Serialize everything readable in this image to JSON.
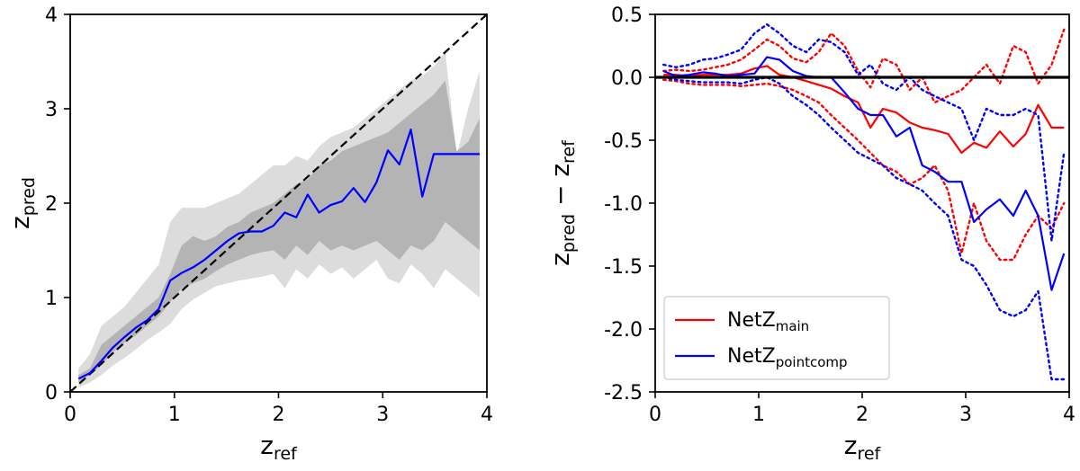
{
  "chart_data": [
    {
      "type": "line",
      "xlabel_main": "z",
      "xlabel_sub": "ref",
      "ylabel_main": "z",
      "ylabel_sub": "pred",
      "xlim": [
        0,
        4
      ],
      "ylim": [
        0,
        4
      ],
      "xticks": [
        "0",
        "1",
        "2",
        "3",
        "4"
      ],
      "yticks": [
        "0",
        "1",
        "2",
        "3",
        "4"
      ],
      "reference_line": {
        "name": "one-to-one",
        "style": "dashed",
        "color": "#000000",
        "points": [
          [
            0,
            0
          ],
          [
            4,
            4
          ]
        ]
      },
      "bands": [
        {
          "name": "outer-band",
          "color": "#dcdcdc",
          "x": [
            0.08,
            0.19,
            0.3,
            0.41,
            0.52,
            0.63,
            0.74,
            0.85,
            0.96,
            1.07,
            1.18,
            1.29,
            1.4,
            1.51,
            1.62,
            1.73,
            1.84,
            1.95,
            2.06,
            2.17,
            2.28,
            2.39,
            2.5,
            2.61,
            2.72,
            2.83,
            2.94,
            3.05,
            3.16,
            3.27,
            3.38,
            3.49,
            3.6,
            3.71,
            3.82,
            3.93
          ],
          "lower": [
            0.05,
            0.1,
            0.18,
            0.28,
            0.36,
            0.45,
            0.55,
            0.63,
            0.72,
            0.88,
            0.98,
            1.05,
            1.12,
            1.15,
            1.18,
            1.2,
            1.22,
            1.25,
            1.1,
            1.3,
            1.2,
            1.35,
            1.25,
            1.32,
            1.2,
            1.3,
            1.4,
            1.2,
            1.15,
            1.35,
            1.25,
            1.1,
            1.3,
            1.2,
            1.1,
            1.0
          ],
          "upper": [
            0.25,
            0.4,
            0.7,
            0.8,
            0.9,
            1.05,
            1.2,
            1.35,
            1.8,
            1.95,
            1.95,
            1.95,
            2.0,
            2.05,
            2.1,
            2.2,
            2.3,
            2.4,
            2.4,
            2.5,
            2.45,
            2.6,
            2.7,
            2.75,
            2.8,
            2.9,
            3.0,
            3.1,
            3.2,
            3.3,
            3.35,
            3.45,
            3.6,
            2.5,
            3.0,
            3.4
          ]
        },
        {
          "name": "inner-band",
          "color": "#b4b4b4",
          "x": [
            0.08,
            0.19,
            0.3,
            0.41,
            0.52,
            0.63,
            0.74,
            0.85,
            0.96,
            1.07,
            1.18,
            1.29,
            1.4,
            1.51,
            1.62,
            1.73,
            1.84,
            1.95,
            2.06,
            2.17,
            2.28,
            2.39,
            2.5,
            2.61,
            2.72,
            2.83,
            2.94,
            3.05,
            3.16,
            3.27,
            3.38,
            3.49,
            3.6,
            3.71,
            3.82,
            3.93
          ],
          "lower": [
            0.1,
            0.18,
            0.28,
            0.42,
            0.52,
            0.6,
            0.7,
            0.8,
            0.95,
            1.1,
            1.15,
            1.2,
            1.28,
            1.35,
            1.4,
            1.45,
            1.48,
            1.5,
            1.4,
            1.55,
            1.45,
            1.6,
            1.5,
            1.55,
            1.5,
            1.55,
            1.6,
            1.5,
            1.4,
            1.55,
            1.5,
            1.6,
            1.8,
            1.7,
            1.6,
            1.5
          ],
          "upper": [
            0.18,
            0.25,
            0.5,
            0.6,
            0.7,
            0.8,
            0.9,
            1.0,
            1.25,
            1.55,
            1.65,
            1.6,
            1.65,
            1.75,
            1.8,
            1.9,
            1.95,
            2.0,
            2.1,
            2.2,
            2.25,
            2.4,
            2.45,
            2.55,
            2.6,
            2.65,
            2.7,
            2.75,
            2.85,
            2.95,
            3.05,
            3.15,
            3.3,
            2.55,
            2.65,
            2.9
          ]
        }
      ],
      "series": [
        {
          "name": "median",
          "color": "#0000ff",
          "x": [
            0.08,
            0.19,
            0.3,
            0.41,
            0.52,
            0.63,
            0.74,
            0.85,
            0.96,
            1.07,
            1.18,
            1.29,
            1.4,
            1.51,
            1.62,
            1.73,
            1.84,
            1.95,
            2.06,
            2.17,
            2.28,
            2.39,
            2.5,
            2.61,
            2.72,
            2.83,
            2.94,
            3.05,
            3.16,
            3.27,
            3.38,
            3.49,
            3.6,
            3.71,
            3.82,
            3.93
          ],
          "y": [
            0.14,
            0.2,
            0.33,
            0.47,
            0.58,
            0.68,
            0.76,
            0.88,
            1.18,
            1.26,
            1.32,
            1.4,
            1.5,
            1.6,
            1.68,
            1.7,
            1.7,
            1.76,
            1.9,
            1.85,
            2.09,
            1.9,
            1.98,
            2.02,
            2.16,
            2.01,
            2.22,
            2.56,
            2.41,
            2.78,
            2.07,
            2.52,
            2.52,
            2.52,
            2.52,
            2.52
          ]
        }
      ]
    },
    {
      "type": "line",
      "xlabel_main": "z",
      "xlabel_sub": "ref",
      "ylabel_parts": [
        "z",
        "pred",
        " − z",
        "ref"
      ],
      "xlim": [
        0,
        4
      ],
      "ylim": [
        -2.5,
        0.5
      ],
      "xticks": [
        "0",
        "1",
        "2",
        "3",
        "4"
      ],
      "yticks": [
        "0.5",
        "0.0",
        "-0.5",
        "-1.0",
        "-1.5",
        "-2.0",
        "-2.5"
      ],
      "ytick_values": [
        0.5,
        0.0,
        -0.5,
        -1.0,
        -1.5,
        -2.0,
        -2.5
      ],
      "zero_line": {
        "y": 0,
        "color": "#000000"
      },
      "legend": {
        "position": "lower-left",
        "entries": [
          {
            "main": "NetZ",
            "sub": "main",
            "color": "#ff0000"
          },
          {
            "main": "NetZ",
            "sub": "pointcomp",
            "color": "#0000ff"
          }
        ]
      },
      "series": [
        {
          "name": "NetZ main",
          "color": "#ff0000",
          "style": "solid",
          "x": [
            0.08,
            0.2,
            0.33,
            0.46,
            0.58,
            0.7,
            0.83,
            0.96,
            1.08,
            1.2,
            1.33,
            1.46,
            1.58,
            1.7,
            1.83,
            1.96,
            2.08,
            2.2,
            2.33,
            2.46,
            2.58,
            2.7,
            2.83,
            2.96,
            3.08,
            3.2,
            3.33,
            3.46,
            3.58,
            3.7,
            3.83,
            3.95
          ],
          "y": [
            0.02,
            0.02,
            0.01,
            0.02,
            0.02,
            0.02,
            0.03,
            0.07,
            0.09,
            0.02,
            0.0,
            -0.03,
            -0.06,
            -0.09,
            -0.15,
            -0.2,
            -0.4,
            -0.25,
            -0.28,
            -0.36,
            -0.4,
            -0.42,
            -0.45,
            -0.6,
            -0.52,
            -0.56,
            -0.43,
            -0.55,
            -0.45,
            -0.22,
            -0.4,
            -0.4
          ]
        },
        {
          "name": "NetZ main upper",
          "color": "#ff0000",
          "style": "dotted",
          "x": [
            0.08,
            0.2,
            0.33,
            0.46,
            0.58,
            0.7,
            0.83,
            0.96,
            1.08,
            1.2,
            1.33,
            1.46,
            1.58,
            1.7,
            1.83,
            1.96,
            2.08,
            2.2,
            2.33,
            2.46,
            2.58,
            2.7,
            2.83,
            2.96,
            3.08,
            3.2,
            3.33,
            3.46,
            3.58,
            3.7,
            3.83,
            3.95
          ],
          "y": [
            0.05,
            0.06,
            0.05,
            0.06,
            0.08,
            0.1,
            0.14,
            0.22,
            0.3,
            0.25,
            0.15,
            0.12,
            0.2,
            0.35,
            0.25,
            0.05,
            -0.08,
            0.15,
            0.1,
            -0.1,
            0.0,
            -0.2,
            -0.15,
            -0.1,
            0.0,
            0.1,
            -0.05,
            0.25,
            0.2,
            -0.05,
            0.1,
            0.38
          ]
        },
        {
          "name": "NetZ main lower",
          "color": "#ff0000",
          "style": "dotted",
          "x": [
            0.08,
            0.2,
            0.33,
            0.46,
            0.58,
            0.7,
            0.83,
            0.96,
            1.08,
            1.2,
            1.33,
            1.46,
            1.58,
            1.7,
            1.83,
            1.96,
            2.08,
            2.2,
            2.33,
            2.46,
            2.58,
            2.7,
            2.83,
            2.96,
            3.08,
            3.2,
            3.33,
            3.46,
            3.58,
            3.7,
            3.83,
            3.95
          ],
          "y": [
            -0.02,
            -0.03,
            -0.05,
            -0.06,
            -0.06,
            -0.06,
            -0.07,
            -0.06,
            -0.05,
            -0.07,
            -0.1,
            -0.15,
            -0.2,
            -0.3,
            -0.4,
            -0.5,
            -0.6,
            -0.7,
            -0.75,
            -0.85,
            -0.8,
            -0.7,
            -0.9,
            -1.4,
            -1.0,
            -1.3,
            -1.45,
            -1.45,
            -1.25,
            -1.1,
            -1.2,
            -1.0
          ]
        },
        {
          "name": "NetZ pointcomp",
          "color": "#0000ff",
          "style": "solid",
          "x": [
            0.08,
            0.2,
            0.33,
            0.46,
            0.58,
            0.7,
            0.83,
            0.96,
            1.08,
            1.2,
            1.33,
            1.46,
            1.58,
            1.7,
            1.83,
            1.96,
            2.08,
            2.2,
            2.33,
            2.46,
            2.58,
            2.7,
            2.83,
            2.96,
            3.08,
            3.2,
            3.33,
            3.46,
            3.58,
            3.7,
            3.83,
            3.95
          ],
          "y": [
            0.05,
            0.01,
            0.02,
            0.04,
            0.03,
            0.01,
            0.02,
            0.03,
            0.16,
            0.14,
            0.05,
            0.01,
            0.0,
            0.0,
            -0.12,
            -0.25,
            -0.3,
            -0.3,
            -0.47,
            -0.4,
            -0.7,
            -0.75,
            -0.83,
            -0.83,
            -1.15,
            -1.05,
            -0.97,
            -1.1,
            -0.9,
            -1.1,
            -1.69,
            -1.4
          ]
        },
        {
          "name": "NetZ pointcomp upper",
          "color": "#0000ff",
          "style": "dotted",
          "x": [
            0.08,
            0.2,
            0.33,
            0.46,
            0.58,
            0.7,
            0.83,
            0.96,
            1.08,
            1.2,
            1.33,
            1.46,
            1.58,
            1.7,
            1.83,
            1.96,
            2.08,
            2.2,
            2.33,
            2.46,
            2.58,
            2.7,
            2.83,
            2.96,
            3.08,
            3.2,
            3.33,
            3.46,
            3.58,
            3.7,
            3.83,
            3.95
          ],
          "y": [
            0.1,
            0.08,
            0.1,
            0.14,
            0.15,
            0.18,
            0.22,
            0.35,
            0.42,
            0.35,
            0.25,
            0.2,
            0.3,
            0.28,
            0.2,
            0.02,
            0.1,
            -0.05,
            -0.1,
            0.0,
            -0.1,
            -0.15,
            -0.2,
            -0.25,
            -0.5,
            -0.25,
            -0.3,
            -0.3,
            -0.25,
            -0.3,
            -1.3,
            -0.6
          ]
        },
        {
          "name": "NetZ pointcomp lower",
          "color": "#0000ff",
          "style": "dotted",
          "x": [
            0.08,
            0.2,
            0.33,
            0.46,
            0.58,
            0.7,
            0.83,
            0.96,
            1.08,
            1.2,
            1.33,
            1.46,
            1.58,
            1.7,
            1.83,
            1.96,
            2.08,
            2.2,
            2.33,
            2.46,
            2.58,
            2.7,
            2.83,
            2.96,
            3.08,
            3.2,
            3.33,
            3.46,
            3.58,
            3.7,
            3.83,
            3.95
          ],
          "y": [
            0.0,
            -0.02,
            -0.03,
            -0.04,
            -0.04,
            -0.04,
            -0.05,
            -0.02,
            0.0,
            -0.05,
            -0.15,
            -0.22,
            -0.3,
            -0.4,
            -0.5,
            -0.6,
            -0.65,
            -0.7,
            -0.8,
            -0.85,
            -0.9,
            -1.0,
            -1.1,
            -1.45,
            -1.5,
            -1.65,
            -1.85,
            -1.9,
            -1.85,
            -1.7,
            -2.4,
            -2.4
          ]
        }
      ]
    }
  ]
}
